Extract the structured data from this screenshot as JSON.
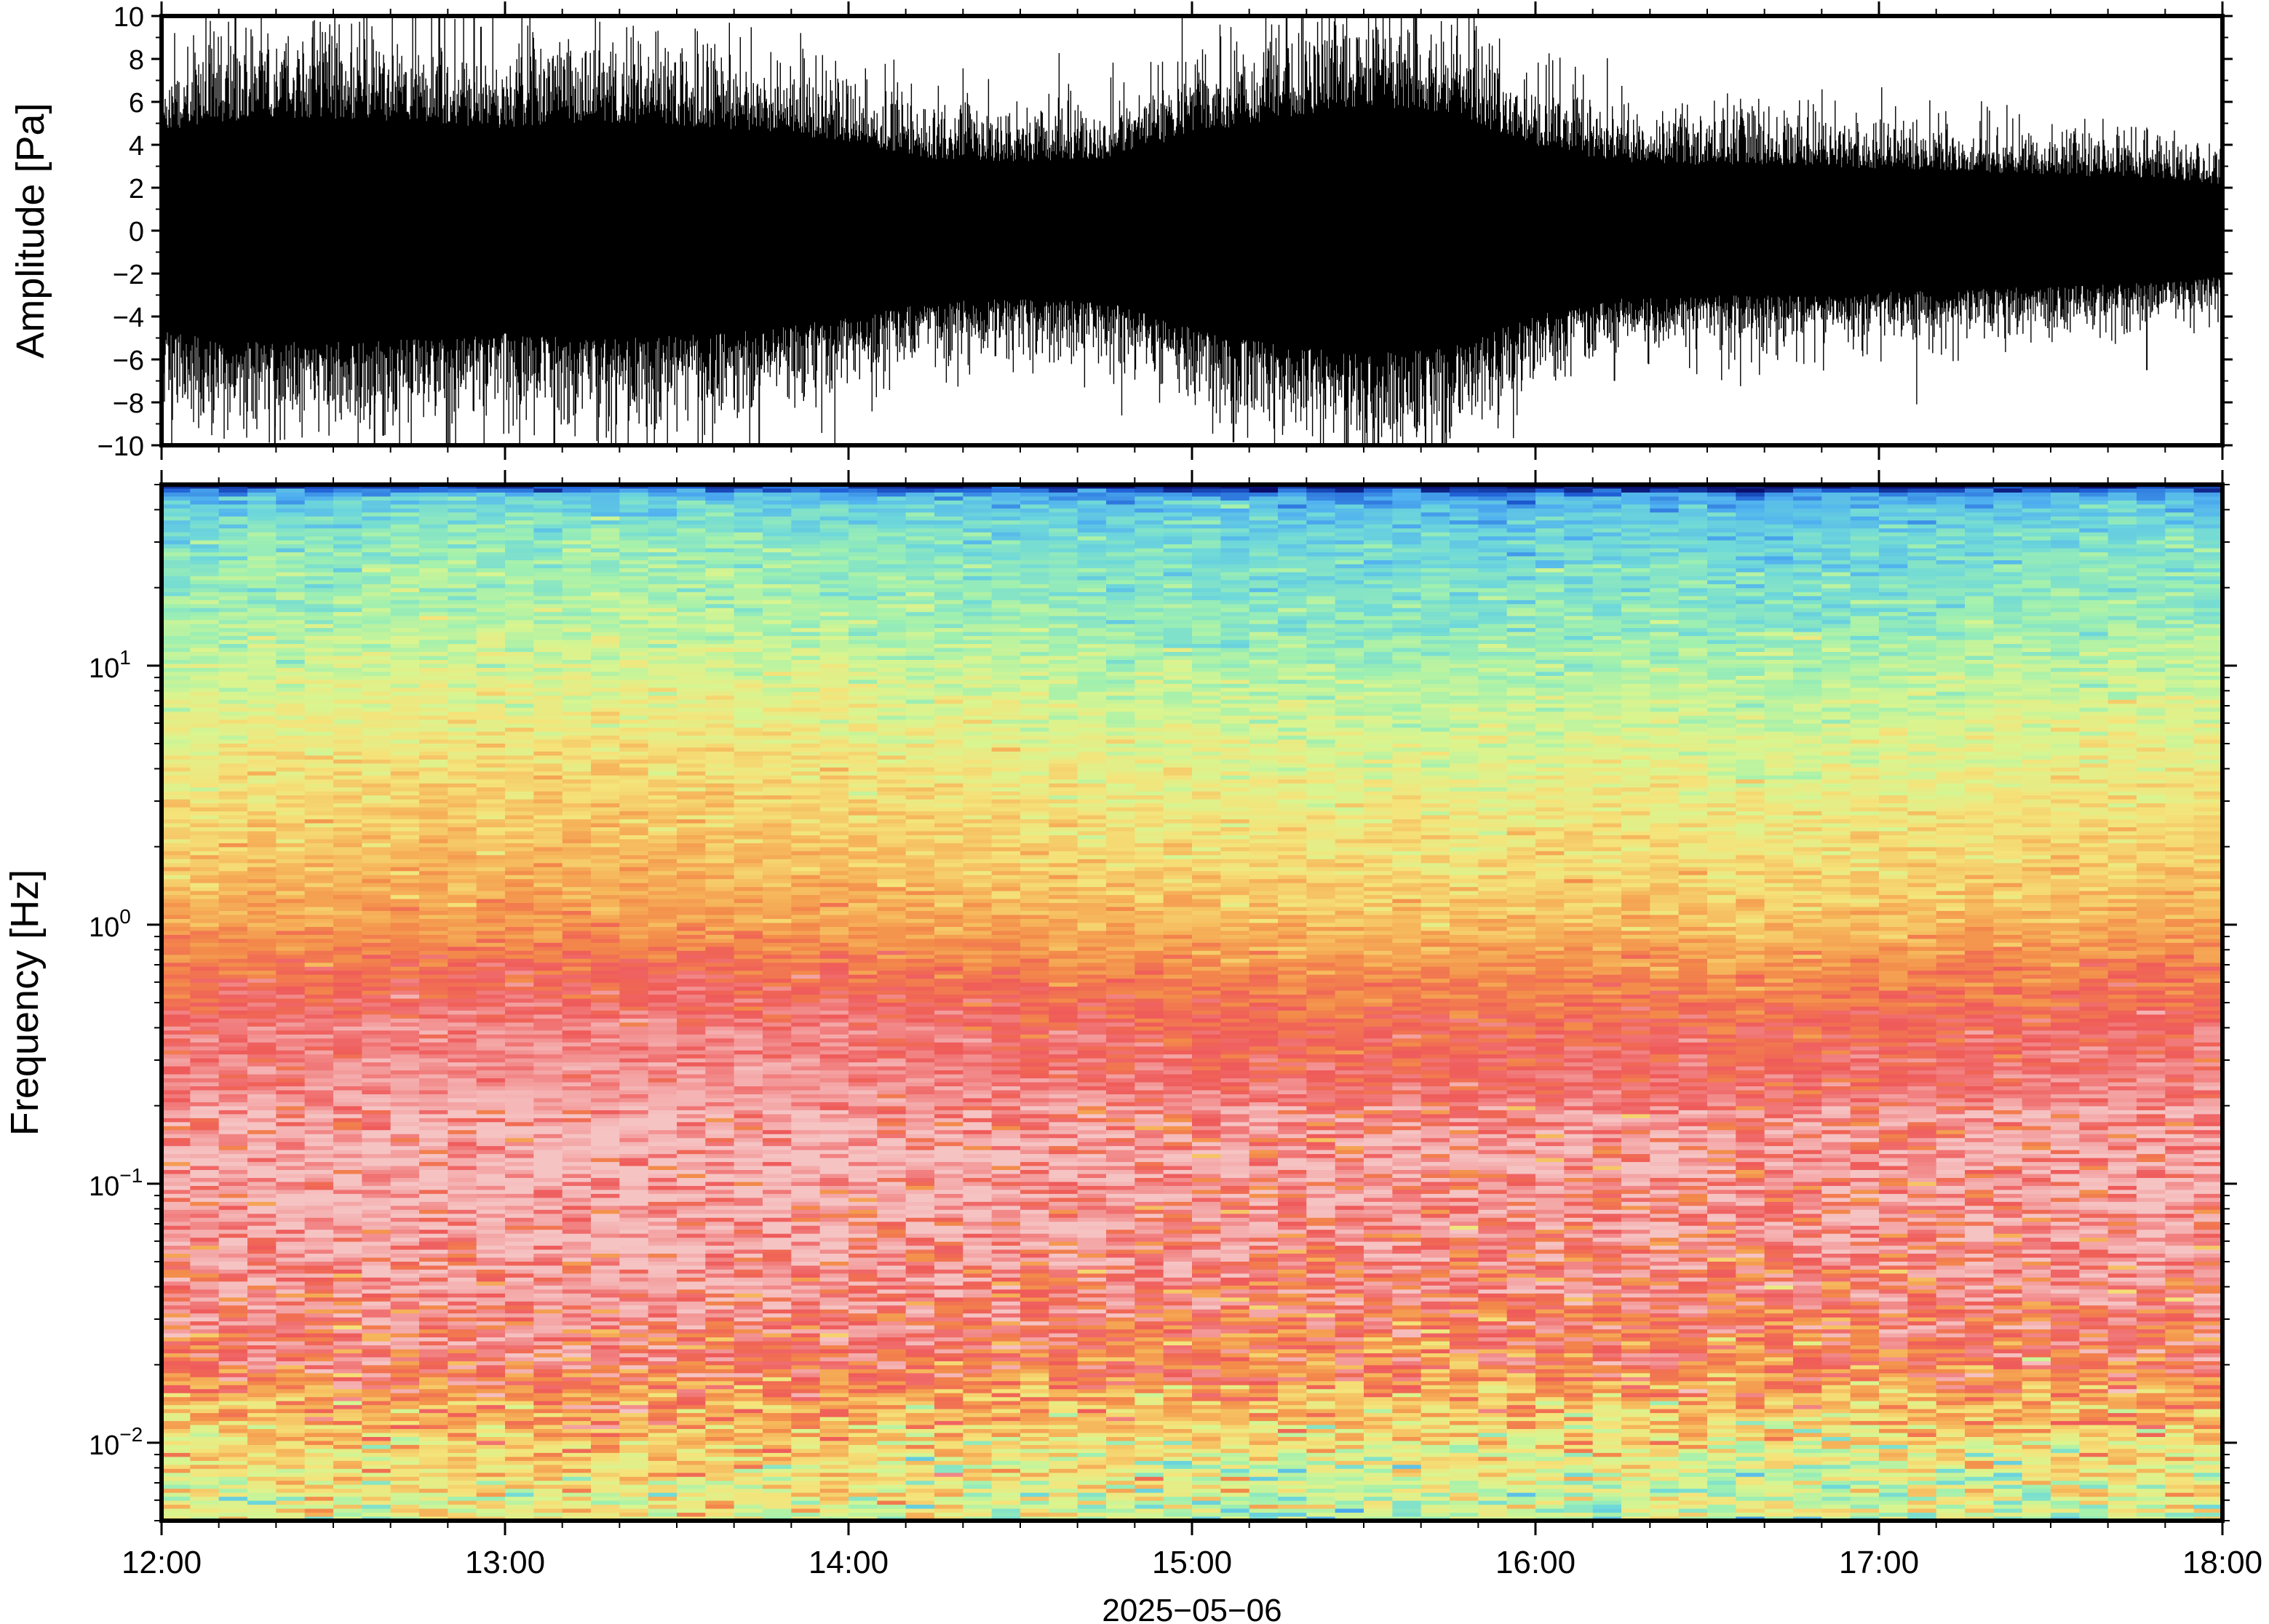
{
  "chart_data": [
    {
      "type": "line",
      "title": "",
      "xlabel": "",
      "ylabel": "Amplitude [Pa]",
      "ylim": [
        -10,
        10
      ],
      "y_ticks": [
        "10",
        "8",
        "6",
        "4",
        "2",
        "0",
        "−2",
        "−4",
        "−6",
        "−8",
        "−10"
      ],
      "y_tick_values": [
        10,
        8,
        6,
        4,
        2,
        0,
        -2,
        -4,
        -6,
        -8,
        -10
      ],
      "x_range": [
        "12:00",
        "18:00"
      ],
      "grid": false,
      "series": [
        {
          "color": "#000000",
          "envelope_x_hours": [
            12.0,
            12.25,
            12.5,
            12.75,
            13.0,
            13.25,
            13.5,
            13.75,
            14.0,
            14.25,
            14.5,
            14.75,
            15.0,
            15.25,
            15.5,
            15.75,
            16.0,
            16.25,
            16.5,
            16.75,
            17.0,
            17.25,
            17.5,
            17.75,
            18.0
          ],
          "envelope_amplitude": [
            3.2,
            3.6,
            3.6,
            3.5,
            3.3,
            3.5,
            3.4,
            3.2,
            2.8,
            2.3,
            2.2,
            2.3,
            3.1,
            3.6,
            4.0,
            3.8,
            2.7,
            2.2,
            2.1,
            2.1,
            2.0,
            1.9,
            1.8,
            1.7,
            1.5
          ],
          "spikes": [
            {
              "x_hours": 12.91,
              "y": 10
            },
            {
              "x_hours": 12.93,
              "y": 9.5
            },
            {
              "x_hours": 15.65,
              "y": 10
            },
            {
              "x_hours": 15.45,
              "y": -10
            },
            {
              "x_hours": 12.33,
              "y": -10
            },
            {
              "x_hours": 12.62,
              "y": -10
            },
            {
              "x_hours": 12.83,
              "y": -10
            },
            {
              "x_hours": 13.74,
              "y": -10
            },
            {
              "x_hours": 15.68,
              "y": -10
            },
            {
              "x_hours": 15.73,
              "y": -10
            },
            {
              "x_hours": 12.4,
              "y": 8
            },
            {
              "x_hours": 15.48,
              "y": 9
            },
            {
              "x_hours": 15.28,
              "y": 8.5
            },
            {
              "x_hours": 16.23,
              "y": -7
            },
            {
              "x_hours": 17.78,
              "y": -6.5
            }
          ]
        }
      ]
    },
    {
      "type": "heatmap",
      "title": "",
      "xlabel": "2025−05−06",
      "ylabel": "Frequency [Hz]",
      "y_scale": "log",
      "ylim": [
        0.005,
        50
      ],
      "y_ticks": [
        {
          "value": 10,
          "base": "10",
          "exp": "1"
        },
        {
          "value": 1,
          "base": "10",
          "exp": "0"
        },
        {
          "value": 0.1,
          "base": "10",
          "exp": "−1"
        },
        {
          "value": 0.01,
          "base": "10",
          "exp": "−2"
        }
      ],
      "x_ticks": [
        "12:00",
        "13:00",
        "14:00",
        "15:00",
        "16:00",
        "17:00",
        "18:00"
      ],
      "x_tick_hours": [
        12,
        13,
        14,
        15,
        16,
        17,
        18
      ],
      "colormap": [
        "#0a0f6b",
        "#1f5fd6",
        "#4fb0f0",
        "#6fd9d9",
        "#9ff0b0",
        "#d8f590",
        "#f5e37a",
        "#f6b55a",
        "#f38a4a",
        "#ef5a5a",
        "#f4a3a3",
        "#f6c3c3"
      ],
      "bands": [
        {
          "log_f": 1.7,
          "level": 0.0
        },
        {
          "log_f": 1.65,
          "level": 0.22
        },
        {
          "log_f": 1.5,
          "level": 0.3
        },
        {
          "log_f": 1.2,
          "level": 0.36
        },
        {
          "log_f": 1.0,
          "level": 0.42
        },
        {
          "log_f": 0.6,
          "level": 0.52
        },
        {
          "log_f": 0.2,
          "level": 0.6
        },
        {
          "log_f": 0.0,
          "level": 0.66
        },
        {
          "log_f": -0.2,
          "level": 0.76
        },
        {
          "log_f": -0.4,
          "level": 0.83
        },
        {
          "log_f": -0.6,
          "level": 0.86
        },
        {
          "log_f": -0.9,
          "level": 0.94
        },
        {
          "log_f": -1.2,
          "level": 0.9
        },
        {
          "log_f": -1.5,
          "level": 0.84
        },
        {
          "log_f": -1.7,
          "level": 0.78
        },
        {
          "log_f": -1.85,
          "level": 0.66
        },
        {
          "log_f": -2.05,
          "level": 0.54
        },
        {
          "log_f": -2.3,
          "level": 0.44
        }
      ]
    }
  ]
}
